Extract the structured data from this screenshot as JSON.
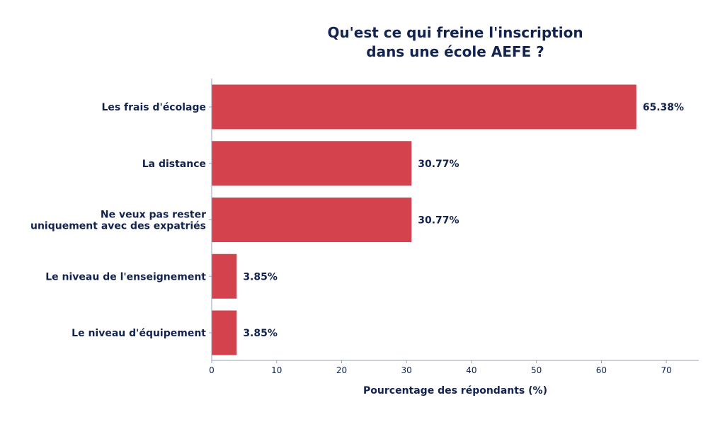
{
  "chart_data": {
    "type": "bar",
    "orientation": "horizontal",
    "title": [
      "Qu'est ce qui freine l'inscription",
      "dans une école AEFE ?"
    ],
    "xlabel": "Pourcentage des répondants (%)",
    "ylabel": "",
    "categories": [
      [
        "Les frais d'écolage"
      ],
      [
        "La distance"
      ],
      [
        "Ne veux pas rester",
        "uniquement avec des expatriés"
      ],
      [
        "Le niveau de l'enseignement"
      ],
      [
        "Le niveau d'équipement"
      ]
    ],
    "values": [
      65.38,
      30.77,
      30.77,
      3.85,
      3.85
    ],
    "value_labels": [
      "65.38%",
      "30.77%",
      "30.77%",
      "3.85%",
      "3.85%"
    ],
    "xlim": [
      0,
      75
    ],
    "xticks": [
      0,
      10,
      20,
      30,
      40,
      50,
      60,
      70
    ],
    "grid": false,
    "bar_color": "#d4424e",
    "text_color": "#13234f"
  }
}
